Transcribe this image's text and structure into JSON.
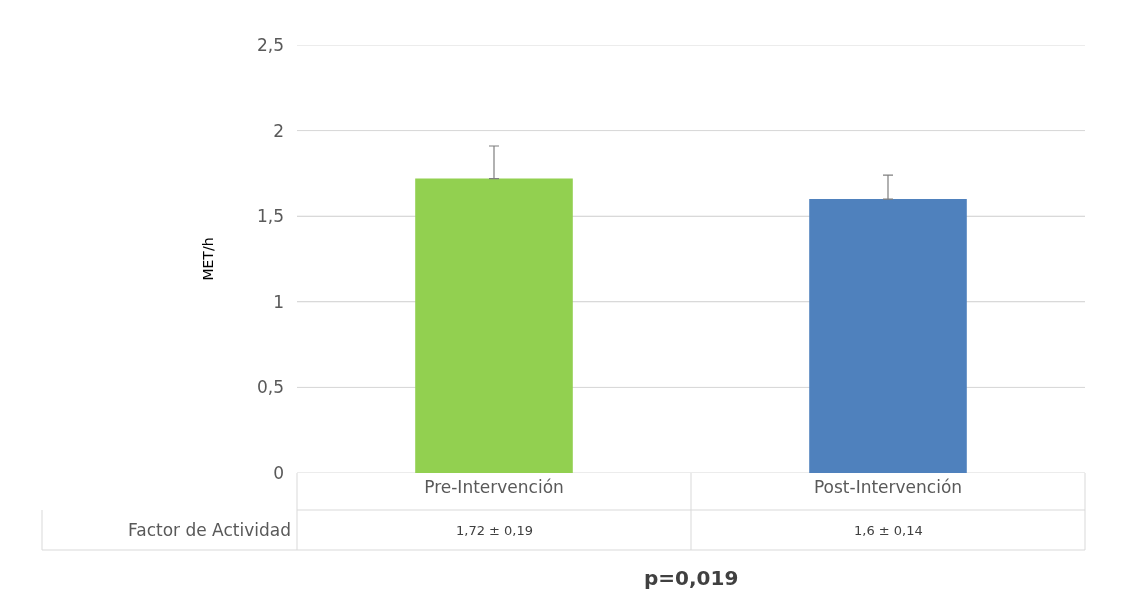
{
  "chart_data": {
    "type": "bar",
    "ylabel": "MET/h",
    "categories": [
      "Pre-Intervención",
      "Post-Intervención"
    ],
    "series": [
      {
        "name": "Factor de Actividad",
        "colors": [
          "#92d050",
          "#4f81bd"
        ],
        "values": [
          1.72,
          1.6
        ],
        "errors": [
          [
            1.72,
            1.91
          ],
          [
            1.6,
            1.74
          ]
        ],
        "value_labels": [
          "1,72 ± 0,19",
          "1,6 ± 0,14"
        ]
      }
    ],
    "ylim": [
      0,
      2.5
    ],
    "yticks": [
      0,
      {
        "value": 0.5,
        "label": "0,5"
      },
      1,
      {
        "value": 1.5,
        "label": "1,5"
      },
      2,
      {
        "value": 2.5,
        "label": "2,5"
      }
    ],
    "grid": "y",
    "legend": false,
    "annotations": [
      "p=0,019"
    ]
  }
}
